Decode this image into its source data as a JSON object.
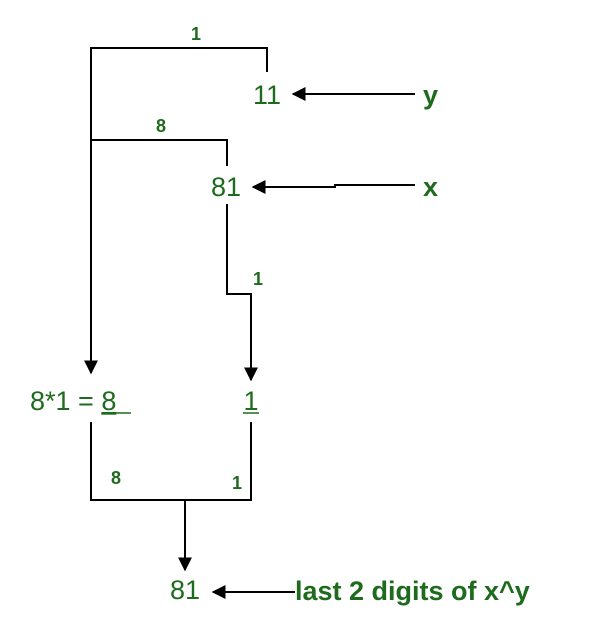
{
  "diagram": {
    "top_number": "11",
    "second_number": "81",
    "y_label": "y",
    "x_label": "x",
    "edge_top": "1",
    "edge_second": "8",
    "edge_right": "1",
    "left_expression": "8*1 = ",
    "left_result": "8",
    "right_result": "1",
    "bottom_left_edge": "8",
    "bottom_right_edge": "1",
    "final_number": "81",
    "final_label": "last 2 digits of x^y"
  }
}
